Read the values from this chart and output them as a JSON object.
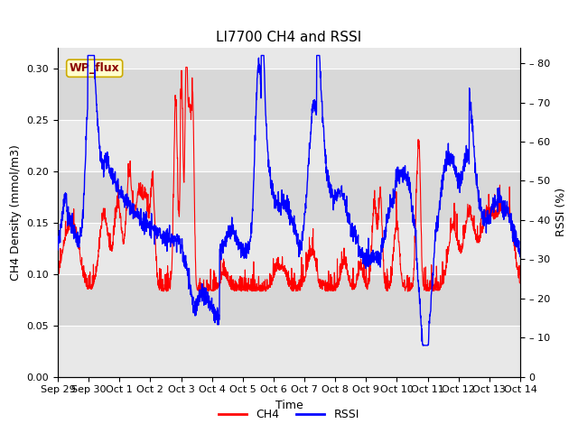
{
  "title": "LI7700 CH4 and RSSI",
  "xlabel": "Time",
  "ylabel_left": "CH4 Density (mmol/m3)",
  "ylabel_right": "RSSI (%)",
  "ylim_left": [
    0.0,
    0.32
  ],
  "ylim_right": [
    0,
    84
  ],
  "yticks_left": [
    0.0,
    0.05,
    0.1,
    0.15,
    0.2,
    0.25,
    0.3
  ],
  "yticks_right": [
    0,
    10,
    20,
    30,
    40,
    50,
    60,
    70,
    80
  ],
  "legend_labels": [
    "CH4",
    "RSSI"
  ],
  "ch4_color": "#ff0000",
  "rssi_color": "#0000ff",
  "wp_flux_label": "WP_flux",
  "band_colors": [
    "#e8e8e8",
    "#d8d8d8"
  ],
  "fig_background": "#ffffff",
  "grid_color": "#ffffff",
  "title_fontsize": 11,
  "axis_fontsize": 9,
  "tick_fontsize": 8,
  "band_boundaries_left": [
    0.0,
    0.05,
    0.1,
    0.15,
    0.2,
    0.25,
    0.3,
    0.32
  ]
}
